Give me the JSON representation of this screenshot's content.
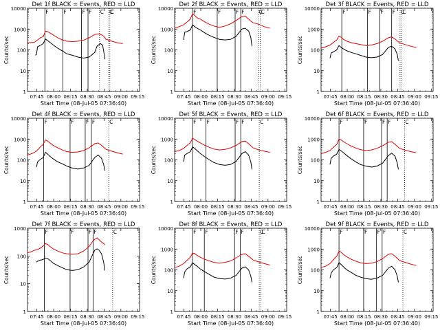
{
  "page": {
    "background": "#ffffff"
  },
  "colors": {
    "events": "#000000",
    "lld": "#e00000",
    "frame": "#000000"
  },
  "common": {
    "xlabel": "Start Time (08-Jul-05 07:36:40)",
    "ylabel": "Counts/sec",
    "x_ticks": [
      "07:45",
      "08:00",
      "08:15",
      "08:30",
      "08:45",
      "09:00",
      "09:15"
    ],
    "y_ticks": [
      "1",
      "10",
      "100",
      "1000",
      "10000"
    ],
    "markers": [
      "F",
      "F",
      "F",
      "F",
      "C"
    ]
  },
  "chart_data": [
    {
      "type": "line",
      "title": "Det 1f BLACK = Events, RED = LLD",
      "x_unit": "minutes after 07:36:40",
      "xlim": [
        0,
        100
      ],
      "ylim": [
        1,
        10000
      ],
      "y_scale": "log",
      "solid_vlines": [
        15.5,
        31.5,
        48.2,
        54.0
      ],
      "dotted_vlines": [
        64.3,
        72.5,
        73.5
      ],
      "series": [
        {
          "color": "#e00000",
          "x": [
            0,
            6,
            9,
            12,
            14,
            16,
            18,
            20,
            23,
            27,
            31,
            35,
            40,
            45,
            50,
            55,
            60,
            64,
            67,
            68,
            70,
            75,
            80,
            85
          ],
          "values": [
            220,
            230,
            300,
            400,
            420,
            800,
            750,
            650,
            520,
            380,
            300,
            260,
            250,
            260,
            290,
            380,
            550,
            580,
            500,
            450,
            320,
            260,
            220,
            200
          ]
        },
        {
          "color": "#000000",
          "x": [
            7,
            8,
            9,
            12,
            14,
            16,
            18,
            20,
            23,
            27,
            31,
            35,
            40,
            45,
            50,
            55,
            60,
            62,
            65,
            67,
            68,
            69
          ],
          "values": [
            55,
            60,
            140,
            170,
            200,
            330,
            280,
            230,
            170,
            120,
            90,
            65,
            55,
            45,
            40,
            45,
            75,
            150,
            200,
            170,
            90,
            35
          ]
        }
      ]
    },
    {
      "type": "line",
      "title": "Det 2f BLACK = Events, RED = LLD",
      "x_unit": "minutes after 07:36:40",
      "xlim": [
        0,
        100
      ],
      "ylim": [
        1,
        10000
      ],
      "y_scale": "log",
      "solid_vlines": [
        16.0,
        38.0,
        54.0,
        59.0
      ],
      "dotted_vlines": [
        74.5,
        76.5
      ],
      "series": [
        {
          "color": "#e00000",
          "x": [
            0,
            4,
            8,
            12,
            14,
            16,
            18,
            20,
            23,
            27,
            31,
            35,
            40,
            45,
            50,
            55,
            60,
            63,
            66,
            68,
            70,
            75,
            80,
            85
          ],
          "values": [
            1100,
            1300,
            1600,
            2400,
            3000,
            5500,
            4500,
            3500,
            3000,
            2200,
            1700,
            1400,
            1200,
            1400,
            1800,
            2600,
            4000,
            4200,
            3000,
            2400,
            2000,
            1700,
            1300,
            1100
          ]
        },
        {
          "color": "#000000",
          "x": [
            8,
            9,
            11,
            14,
            16,
            18,
            20,
            23,
            27,
            31,
            35,
            40,
            45,
            50,
            55,
            60,
            63,
            66,
            68,
            69
          ],
          "values": [
            300,
            700,
            750,
            900,
            1600,
            1300,
            1100,
            900,
            650,
            500,
            400,
            320,
            300,
            320,
            450,
            1000,
            1100,
            800,
            400,
            150
          ]
        }
      ]
    },
    {
      "type": "line",
      "title": "Det 3f BLACK = Events, RED = LLD",
      "x_unit": "minutes after 07:36:40",
      "xlim": [
        0,
        100
      ],
      "ylim": [
        1,
        10000
      ],
      "y_scale": "log",
      "solid_vlines": [
        18.5,
        41.5,
        52.5,
        63.0
      ],
      "dotted_vlines": [
        70.5,
        72.0
      ],
      "series": [
        {
          "color": "#e00000",
          "x": [
            0,
            4,
            8,
            12,
            14,
            16,
            18,
            20,
            23,
            27,
            31,
            35,
            40,
            45,
            50,
            55,
            60,
            63,
            66,
            68,
            70,
            75,
            80,
            85
          ],
          "values": [
            120,
            140,
            170,
            250,
            300,
            450,
            400,
            320,
            260,
            220,
            200,
            180,
            160,
            170,
            200,
            260,
            380,
            420,
            330,
            270,
            220,
            180,
            150,
            130
          ]
        },
        {
          "color": "#000000",
          "x": [
            8,
            9,
            11,
            14,
            16,
            18,
            20,
            23,
            27,
            31,
            35,
            40,
            45,
            50,
            55,
            60,
            63,
            66,
            68,
            69
          ],
          "values": [
            40,
            70,
            80,
            100,
            160,
            130,
            110,
            90,
            75,
            65,
            55,
            45,
            42,
            45,
            60,
            130,
            150,
            110,
            60,
            30
          ]
        }
      ]
    },
    {
      "type": "line",
      "title": "Det 4f BLACK = Events, RED = LLD",
      "x_unit": "minutes after 07:36:40",
      "xlim": [
        0,
        100
      ],
      "ylim": [
        1,
        10000
      ],
      "y_scale": "log",
      "solid_vlines": [
        14.5,
        38.0,
        51.5,
        57.0
      ],
      "dotted_vlines": [
        72.5
      ],
      "series": [
        {
          "color": "#e00000",
          "x": [
            0,
            4,
            8,
            12,
            14,
            16,
            18,
            20,
            23,
            27,
            31,
            35,
            40,
            45,
            50,
            55,
            60,
            63,
            66,
            68,
            70,
            75,
            80,
            85
          ],
          "values": [
            170,
            200,
            260,
            450,
            550,
            900,
            800,
            650,
            500,
            380,
            300,
            250,
            230,
            240,
            280,
            380,
            600,
            650,
            500,
            400,
            320,
            260,
            220,
            190
          ]
        },
        {
          "color": "#000000",
          "x": [
            8,
            9,
            11,
            14,
            16,
            18,
            20,
            23,
            27,
            31,
            35,
            40,
            45,
            50,
            55,
            60,
            63,
            66,
            68,
            69
          ],
          "values": [
            45,
            80,
            100,
            130,
            230,
            190,
            150,
            110,
            80,
            65,
            50,
            40,
            36,
            40,
            55,
            130,
            170,
            120,
            60,
            30
          ]
        }
      ]
    },
    {
      "type": "line",
      "title": "Det 5f BLACK = Events, RED = LLD",
      "x_unit": "minutes after 07:36:40",
      "xlim": [
        0,
        100
      ],
      "ylim": [
        1,
        10000
      ],
      "y_scale": "log",
      "solid_vlines": [
        16.0,
        28.0,
        54.0,
        59.0
      ],
      "dotted_vlines": [
        75.5
      ],
      "series": [
        {
          "color": "#e00000",
          "x": [
            0,
            4,
            8,
            12,
            14,
            16,
            18,
            20,
            23,
            27,
            31,
            35,
            40,
            45,
            50,
            55,
            60,
            63,
            66,
            68,
            70,
            75,
            80,
            85
          ],
          "values": [
            250,
            280,
            350,
            550,
            650,
            1100,
            950,
            800,
            650,
            500,
            400,
            330,
            300,
            320,
            380,
            500,
            750,
            800,
            600,
            480,
            380,
            300,
            260,
            230
          ]
        },
        {
          "color": "#000000",
          "x": [
            8,
            9,
            11,
            14,
            16,
            18,
            20,
            23,
            27,
            31,
            35,
            40,
            45,
            50,
            55,
            60,
            63,
            66,
            68,
            69
          ],
          "values": [
            80,
            170,
            200,
            250,
            420,
            350,
            280,
            200,
            140,
            100,
            75,
            60,
            55,
            60,
            85,
            200,
            250,
            170,
            80,
            35
          ]
        }
      ]
    },
    {
      "type": "line",
      "title": "Det 6f BLACK = Events, RED = LLD",
      "x_unit": "minutes after 07:36:40",
      "xlim": [
        0,
        100
      ],
      "ylim": [
        1,
        10000
      ],
      "y_scale": "log",
      "solid_vlines": [
        16.0,
        38.0,
        54.0,
        59.0
      ],
      "dotted_vlines": [
        74.5
      ],
      "series": [
        {
          "color": "#e00000",
          "x": [
            0,
            4,
            8,
            12,
            14,
            16,
            18,
            20,
            23,
            27,
            31,
            35,
            40,
            45,
            50,
            55,
            60,
            63,
            66,
            68,
            70,
            75,
            80,
            85
          ],
          "values": [
            200,
            230,
            280,
            450,
            550,
            1000,
            900,
            750,
            600,
            450,
            370,
            310,
            280,
            300,
            360,
            480,
            700,
            750,
            560,
            450,
            360,
            290,
            250,
            220
          ]
        },
        {
          "color": "#000000",
          "x": [
            8,
            9,
            11,
            14,
            16,
            18,
            20,
            23,
            27,
            31,
            35,
            40,
            45,
            50,
            55,
            60,
            63,
            66,
            68,
            69
          ],
          "values": [
            60,
            120,
            150,
            190,
            320,
            270,
            220,
            160,
            110,
            80,
            60,
            50,
            45,
            50,
            70,
            160,
            210,
            150,
            70,
            35
          ]
        }
      ]
    },
    {
      "type": "line",
      "title": "Det 7f BLACK = Events, RED = LLD",
      "x_unit": "minutes after 07:36:40",
      "xlim": [
        0,
        100
      ],
      "ylim": [
        1,
        1000
      ],
      "y_scale": "log",
      "solid_vlines": [
        15.0,
        38.0,
        54.0,
        58.5
      ],
      "dotted_vlines": [
        76.0
      ],
      "series": [
        {
          "color": "#e00000",
          "x": [
            0,
            3,
            6,
            9,
            12,
            14,
            16,
            18,
            20,
            23,
            27,
            31,
            35,
            40,
            45,
            50,
            55,
            58,
            60,
            62,
            64,
            66,
            68,
            69
          ],
          "values": [
            130,
            140,
            160,
            170,
            200,
            230,
            280,
            260,
            220,
            180,
            150,
            130,
            120,
            115,
            120,
            150,
            220,
            330,
            400,
            450,
            380,
            320,
            280,
            250
          ]
        },
        {
          "color": "#000000",
          "x": [
            8,
            9,
            11,
            14,
            16,
            18,
            20,
            23,
            27,
            31,
            35,
            40,
            45,
            50,
            55,
            58,
            60,
            62,
            64,
            66,
            68,
            69
          ],
          "values": [
            60,
            65,
            70,
            75,
            85,
            80,
            70,
            55,
            45,
            38,
            32,
            30,
            32,
            40,
            60,
            110,
            160,
            180,
            160,
            120,
            60,
            30
          ]
        }
      ]
    },
    {
      "type": "line",
      "title": "Det 8f BLACK = Events, RED = LLD",
      "x_unit": "minutes after 07:36:40",
      "xlim": [
        0,
        100
      ],
      "ylim": [
        1,
        10000
      ],
      "y_scale": "log",
      "solid_vlines": [
        16.0,
        26.5,
        53.5,
        58.5
      ],
      "dotted_vlines": [
        75.5,
        77.0
      ],
      "series": [
        {
          "color": "#e00000",
          "x": [
            0,
            4,
            8,
            12,
            14,
            16,
            18,
            20,
            23,
            27,
            31,
            35,
            40,
            45,
            50,
            55,
            60,
            63,
            66,
            68,
            70,
            75,
            80,
            85
          ],
          "values": [
            130,
            150,
            200,
            320,
            400,
            650,
            600,
            500,
            400,
            320,
            270,
            230,
            210,
            230,
            270,
            380,
            550,
            600,
            450,
            370,
            300,
            240,
            200,
            170
          ]
        },
        {
          "color": "#000000",
          "x": [
            8,
            9,
            11,
            14,
            16,
            18,
            20,
            23,
            27,
            31,
            35,
            40,
            45,
            50,
            55,
            60,
            63,
            66,
            68,
            69
          ],
          "values": [
            40,
            80,
            110,
            140,
            220,
            180,
            150,
            110,
            80,
            60,
            45,
            38,
            36,
            40,
            55,
            120,
            140,
            100,
            50,
            25
          ]
        }
      ]
    },
    {
      "type": "line",
      "title": "Det 9f BLACK = Events, RED = LLD",
      "x_unit": "minutes after 07:36:40",
      "xlim": [
        0,
        100
      ],
      "ylim": [
        1,
        10000
      ],
      "y_scale": "log",
      "solid_vlines": [
        16.0,
        38.0,
        49.5,
        54.5
      ],
      "dotted_vlines": [
        73.0
      ],
      "series": [
        {
          "color": "#e00000",
          "x": [
            0,
            4,
            8,
            12,
            14,
            16,
            18,
            20,
            23,
            27,
            31,
            35,
            40,
            45,
            50,
            55,
            60,
            63,
            66,
            68,
            70,
            75,
            80,
            85
          ],
          "values": [
            130,
            150,
            200,
            350,
            450,
            800,
            700,
            550,
            420,
            320,
            260,
            220,
            200,
            210,
            250,
            350,
            550,
            600,
            450,
            360,
            280,
            230,
            190,
            160
          ]
        },
        {
          "color": "#000000",
          "x": [
            8,
            9,
            11,
            14,
            16,
            18,
            20,
            23,
            27,
            31,
            35,
            40,
            45,
            50,
            55,
            60,
            63,
            66,
            68,
            69
          ],
          "values": [
            40,
            70,
            100,
            130,
            220,
            180,
            140,
            100,
            75,
            55,
            45,
            38,
            35,
            40,
            55,
            120,
            150,
            100,
            50,
            25
          ]
        }
      ]
    }
  ]
}
